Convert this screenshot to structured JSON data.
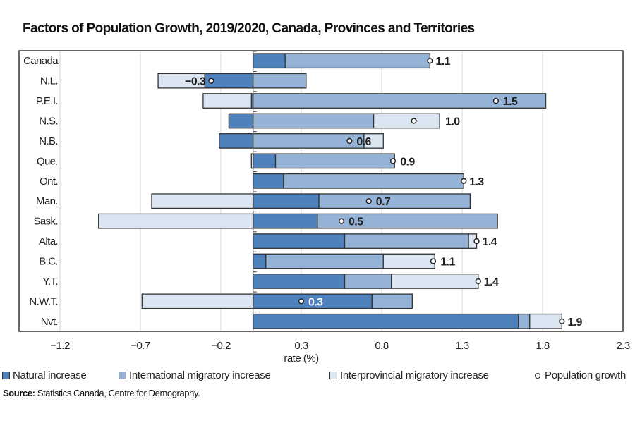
{
  "chart_data": {
    "type": "bar",
    "orientation": "horizontal",
    "stacked": true,
    "title": "Factors of Population Growth, 2019/2020, Canada, Provinces and Territories",
    "xlabel": "rate (%)",
    "ylabel": "",
    "xlim": [
      -1.2,
      2.3
    ],
    "xticks": [
      -1.2,
      -0.7,
      -0.2,
      0.3,
      0.8,
      1.3,
      1.8,
      2.3
    ],
    "xtick_labels": [
      "−1.2",
      "−0.7",
      "−0.2",
      "0.3",
      "0.8",
      "1.3",
      "1.8",
      "2.3"
    ],
    "grid": "vertical",
    "legend_position": "bottom",
    "categories": [
      "Canada",
      "N.L.",
      "P.E.I.",
      "N.S.",
      "N.B.",
      "Que.",
      "Ont.",
      "Man.",
      "Sask.",
      "Alta.",
      "B.C.",
      "Y.T.",
      "N.W.T.",
      "Nvt."
    ],
    "series": [
      {
        "name": "Natural increase",
        "color": "#4f81bd",
        "values": [
          0.2,
          -0.3,
          -0.01,
          -0.15,
          -0.21,
          0.14,
          0.19,
          0.41,
          0.4,
          0.57,
          0.08,
          0.57,
          0.74,
          1.65
        ]
      },
      {
        "name": "International migratory increase",
        "color": "#95b3d7",
        "values": [
          0.9,
          0.33,
          1.82,
          0.75,
          0.69,
          0.74,
          1.12,
          0.94,
          1.12,
          0.77,
          0.73,
          0.29,
          0.25,
          0.07
        ]
      },
      {
        "name": "Interprovincial migratory increase",
        "color": "#dce6f2",
        "values": [
          0.0,
          -0.29,
          -0.3,
          0.41,
          0.12,
          -0.01,
          0.0,
          -0.63,
          -0.96,
          0.05,
          0.32,
          0.54,
          -0.69,
          0.2
        ]
      }
    ],
    "population_growth": {
      "name": "Population growth",
      "values": [
        1.1,
        -0.26,
        1.51,
        1.0,
        0.6,
        0.87,
        1.31,
        0.72,
        0.55,
        1.39,
        1.12,
        1.4,
        0.3,
        1.92
      ],
      "labels": [
        "1.1",
        "−0.3",
        "1.5",
        "1.0",
        "0.6",
        "0.9",
        "1.3",
        "0.7",
        "0.5",
        "1.4",
        "1.1",
        "1.4",
        "0.3",
        "1.9"
      ]
    }
  },
  "legend": {
    "natural": "Natural increase",
    "international": "International migratory increase",
    "interprovincial": "Interprovincial migratory increase",
    "growth": "Population growth"
  },
  "source": {
    "label": "Source:",
    "text": "Statistics Canada, Centre for Demography."
  }
}
